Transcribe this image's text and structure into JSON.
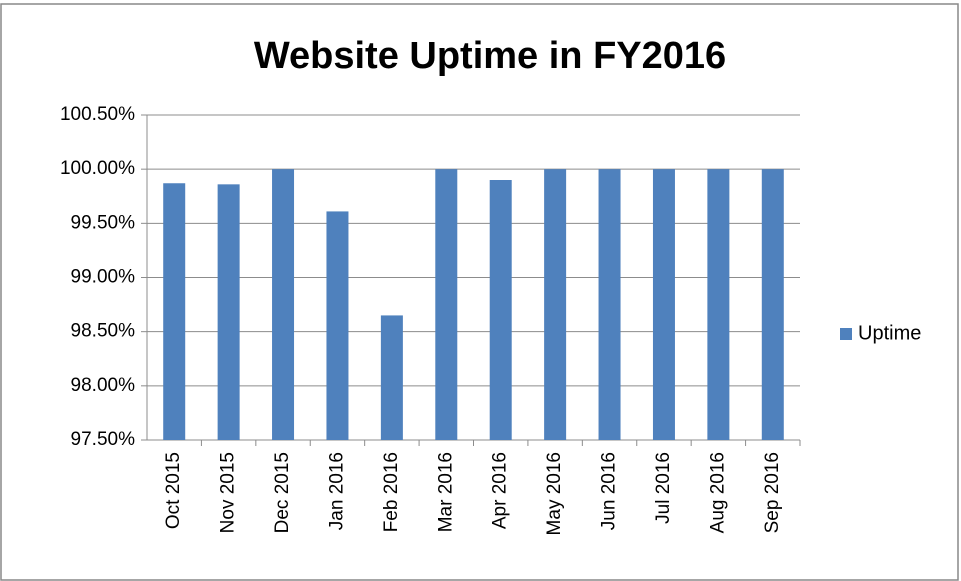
{
  "chart_data": {
    "type": "bar",
    "title": "Website Uptime in FY2016",
    "categories": [
      "Oct 2015",
      "Nov 2015",
      "Dec 2015",
      "Jan 2016",
      "Feb 2016",
      "Mar 2016",
      "Apr 2016",
      "May 2016",
      "Jun 2016",
      "Jul 2016",
      "Aug 2016",
      "Sep 2016"
    ],
    "series": [
      {
        "name": "Uptime",
        "color": "#4f81bd",
        "values": [
          99.87,
          99.86,
          100.0,
          99.61,
          98.65,
          100.0,
          99.9,
          100.0,
          100.0,
          100.0,
          100.0,
          100.0
        ]
      }
    ],
    "ylim": [
      97.5,
      100.5
    ],
    "yticks": [
      {
        "value": 97.5,
        "label": "97.50%"
      },
      {
        "value": 98.0,
        "label": "98.00%"
      },
      {
        "value": 98.5,
        "label": "98.50%"
      },
      {
        "value": 99.0,
        "label": "99.00%"
      },
      {
        "value": 99.5,
        "label": "99.50%"
      },
      {
        "value": 100.0,
        "label": "100.00%"
      },
      {
        "value": 100.5,
        "label": "100.50%"
      }
    ],
    "grid": true,
    "legend": "right"
  }
}
